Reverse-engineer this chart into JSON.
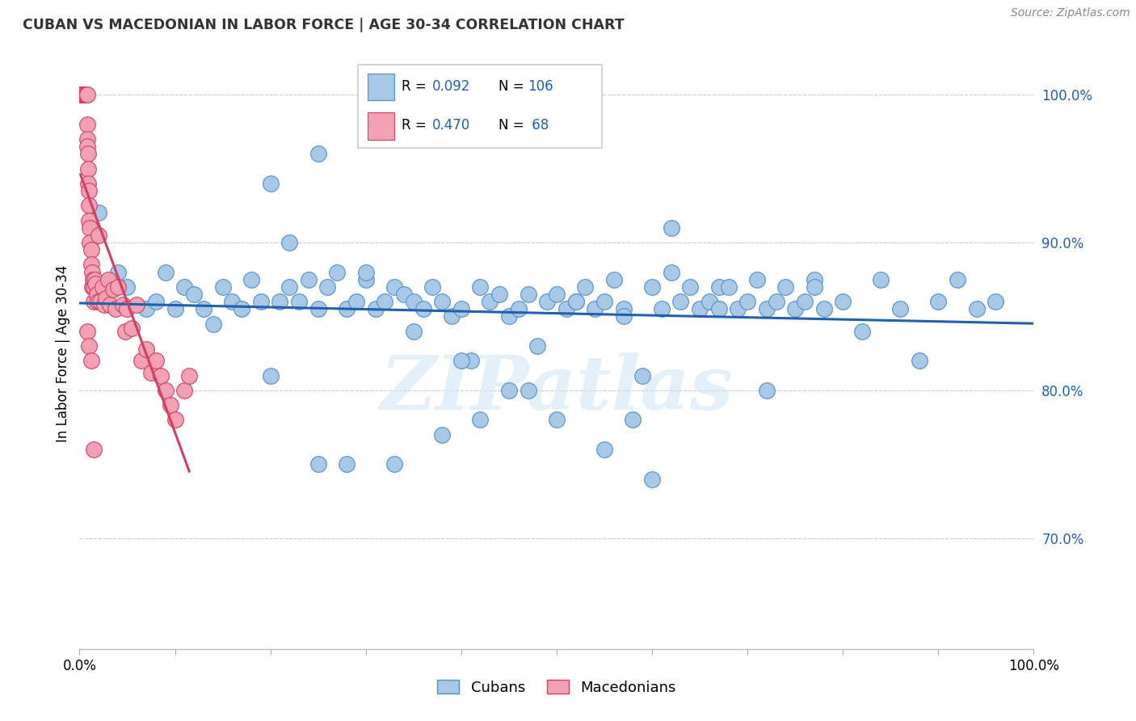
{
  "title": "CUBAN VS MACEDONIAN IN LABOR FORCE | AGE 30-34 CORRELATION CHART",
  "source": "Source: ZipAtlas.com",
  "ylabel": "In Labor Force | Age 30-34",
  "xlim": [
    0.0,
    1.0
  ],
  "ylim": [
    0.625,
    1.025
  ],
  "yticks": [
    0.7,
    0.8,
    0.9,
    1.0
  ],
  "ytick_labels": [
    "70.0%",
    "80.0%",
    "90.0%",
    "100.0%"
  ],
  "xticks": [
    0.0,
    0.1,
    0.2,
    0.3,
    0.4,
    0.5,
    0.6,
    0.7,
    0.8,
    0.9,
    1.0
  ],
  "xtick_labels": [
    "0.0%",
    "",
    "",
    "",
    "",
    "",
    "",
    "",
    "",
    "",
    "100.0%"
  ],
  "blue_color": "#a8c8e8",
  "pink_color": "#f4a0b5",
  "blue_edge_color": "#5090c8",
  "pink_edge_color": "#d04060",
  "blue_line_color": "#2060b0",
  "pink_line_color": "#d04060",
  "watermark": "ZIPatlas",
  "blue_scatter_x": [
    0.02,
    0.04,
    0.05,
    0.07,
    0.08,
    0.09,
    0.1,
    0.11,
    0.12,
    0.13,
    0.14,
    0.15,
    0.16,
    0.17,
    0.18,
    0.19,
    0.2,
    0.21,
    0.22,
    0.23,
    0.24,
    0.25,
    0.26,
    0.27,
    0.28,
    0.29,
    0.3,
    0.31,
    0.32,
    0.33,
    0.34,
    0.35,
    0.36,
    0.37,
    0.38,
    0.39,
    0.4,
    0.41,
    0.42,
    0.43,
    0.44,
    0.45,
    0.46,
    0.47,
    0.48,
    0.49,
    0.5,
    0.51,
    0.52,
    0.53,
    0.54,
    0.55,
    0.56,
    0.57,
    0.58,
    0.59,
    0.6,
    0.61,
    0.62,
    0.63,
    0.64,
    0.65,
    0.66,
    0.67,
    0.68,
    0.69,
    0.7,
    0.71,
    0.72,
    0.73,
    0.74,
    0.75,
    0.76,
    0.77,
    0.78,
    0.8,
    0.82,
    0.84,
    0.86,
    0.88,
    0.9,
    0.92,
    0.94,
    0.96,
    0.2,
    0.22,
    0.25,
    0.28,
    0.33,
    0.38,
    0.42,
    0.47,
    0.52,
    0.57,
    0.62,
    0.67,
    0.72,
    0.77,
    0.25,
    0.3,
    0.35,
    0.4,
    0.45,
    0.5,
    0.55,
    0.6
  ],
  "blue_scatter_y": [
    0.92,
    0.88,
    0.87,
    0.855,
    0.86,
    0.88,
    0.855,
    0.87,
    0.865,
    0.855,
    0.845,
    0.87,
    0.86,
    0.855,
    0.875,
    0.86,
    0.81,
    0.86,
    0.87,
    0.86,
    0.875,
    0.855,
    0.87,
    0.88,
    0.855,
    0.86,
    0.875,
    0.855,
    0.86,
    0.87,
    0.865,
    0.86,
    0.855,
    0.87,
    0.86,
    0.85,
    0.855,
    0.82,
    0.78,
    0.86,
    0.865,
    0.85,
    0.855,
    0.8,
    0.83,
    0.86,
    0.865,
    0.855,
    0.86,
    0.87,
    0.855,
    0.86,
    0.875,
    0.855,
    0.78,
    0.81,
    0.87,
    0.855,
    0.88,
    0.86,
    0.87,
    0.855,
    0.86,
    0.87,
    0.87,
    0.855,
    0.86,
    0.875,
    0.855,
    0.86,
    0.87,
    0.855,
    0.86,
    0.875,
    0.855,
    0.86,
    0.84,
    0.875,
    0.855,
    0.82,
    0.86,
    0.875,
    0.855,
    0.86,
    0.94,
    0.9,
    0.75,
    0.75,
    0.75,
    0.77,
    0.87,
    0.865,
    0.86,
    0.85,
    0.91,
    0.855,
    0.8,
    0.87,
    0.96,
    0.88,
    0.84,
    0.82,
    0.8,
    0.78,
    0.76,
    0.74
  ],
  "pink_scatter_x": [
    0.001,
    0.002,
    0.003,
    0.003,
    0.004,
    0.004,
    0.005,
    0.005,
    0.005,
    0.006,
    0.006,
    0.006,
    0.007,
    0.007,
    0.007,
    0.007,
    0.008,
    0.008,
    0.008,
    0.008,
    0.009,
    0.009,
    0.009,
    0.01,
    0.01,
    0.01,
    0.011,
    0.011,
    0.012,
    0.012,
    0.013,
    0.013,
    0.014,
    0.015,
    0.015,
    0.016,
    0.017,
    0.018,
    0.019,
    0.02,
    0.022,
    0.024,
    0.026,
    0.028,
    0.03,
    0.032,
    0.035,
    0.038,
    0.04,
    0.045,
    0.048,
    0.05,
    0.055,
    0.06,
    0.065,
    0.07,
    0.075,
    0.08,
    0.085,
    0.09,
    0.095,
    0.1,
    0.11,
    0.115,
    0.008,
    0.01,
    0.012,
    0.015
  ],
  "pink_scatter_y": [
    1.0,
    1.0,
    1.0,
    1.0,
    1.0,
    1.0,
    1.0,
    1.0,
    1.0,
    1.0,
    1.0,
    1.0,
    1.0,
    1.0,
    1.0,
    1.0,
    1.0,
    0.98,
    0.97,
    0.965,
    0.96,
    0.95,
    0.94,
    0.935,
    0.925,
    0.915,
    0.91,
    0.9,
    0.895,
    0.885,
    0.88,
    0.87,
    0.875,
    0.87,
    0.86,
    0.875,
    0.872,
    0.865,
    0.86,
    0.905,
    0.86,
    0.87,
    0.858,
    0.862,
    0.875,
    0.858,
    0.868,
    0.855,
    0.87,
    0.858,
    0.84,
    0.855,
    0.842,
    0.858,
    0.82,
    0.828,
    0.812,
    0.82,
    0.81,
    0.8,
    0.79,
    0.78,
    0.8,
    0.81,
    0.84,
    0.83,
    0.82,
    0.76
  ]
}
